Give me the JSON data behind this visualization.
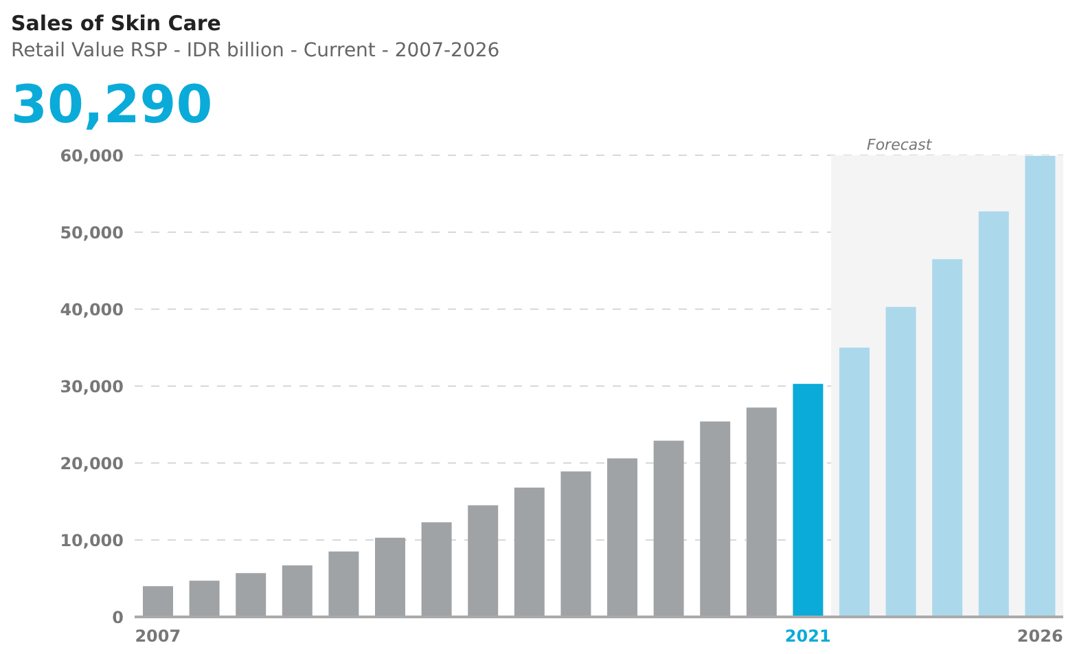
{
  "chart_data": {
    "type": "bar",
    "title": "Sales of Skin Care",
    "subtitle": "Retail Value RSP - IDR billion - Current - 2007-2026",
    "annotations": [
      "30,290"
    ],
    "x": [
      2007,
      2008,
      2009,
      2010,
      2011,
      2012,
      2013,
      2014,
      2015,
      2016,
      2017,
      2018,
      2019,
      2020,
      2021,
      2022,
      2023,
      2024,
      2025,
      2026
    ],
    "values": [
      4000,
      4700,
      5700,
      6700,
      8500,
      10300,
      12300,
      14500,
      16800,
      18900,
      20600,
      22900,
      25400,
      27200,
      30290,
      35000,
      40300,
      46500,
      52700,
      59900
    ],
    "colors": [
      "#a0a3a6",
      "#a0a3a6",
      "#a0a3a6",
      "#a0a3a6",
      "#a0a3a6",
      "#a0a3a6",
      "#a0a3a6",
      "#a0a3a6",
      "#a0a3a6",
      "#a0a3a6",
      "#a0a3a6",
      "#a0a3a6",
      "#a0a3a6",
      "#a0a3a6",
      "#0aabd9",
      "#acd8ec",
      "#acd8ec",
      "#acd8ec",
      "#acd8ec",
      "#acd8ec"
    ],
    "xlim": [
      2006.5,
      2026.5
    ],
    "xticks": [
      2007,
      2021,
      2026
    ],
    "ylim": [
      0,
      60000
    ],
    "yticks": [
      0,
      {
        "value": 10000,
        "label": "10,000"
      },
      {
        "value": 20000,
        "label": "20,000"
      },
      {
        "value": 30000,
        "label": "30,000"
      },
      {
        "value": 40000,
        "label": "40,000"
      },
      {
        "value": 50000,
        "label": "50,000"
      },
      {
        "value": 60000,
        "label": "60,000"
      }
    ],
    "bands": [
      {
        "axis": "x",
        "from": 2021.5,
        "to": 2026.5,
        "label": "Forecast",
        "color": "#f4f4f4"
      }
    ],
    "grid": "y"
  }
}
